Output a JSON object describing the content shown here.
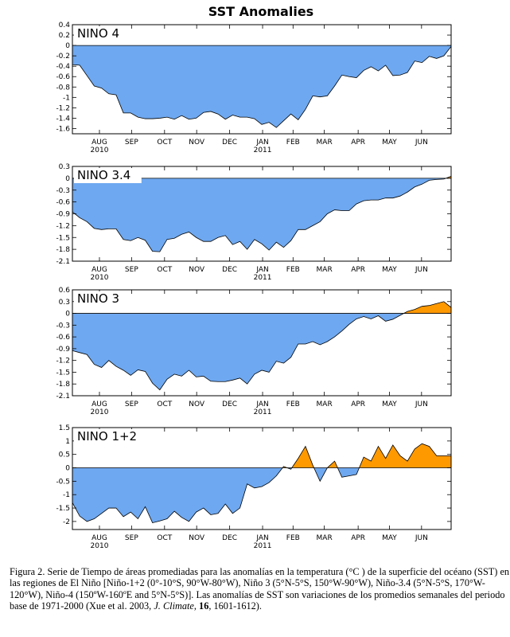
{
  "title": "SST Anomalies",
  "colors": {
    "negative": "#6ea8f0",
    "positive": "#ff9900",
    "line": "#000000"
  },
  "chart_data": [
    {
      "type": "area",
      "title": "NINO 4",
      "x": [
        0,
        1,
        2,
        3,
        4,
        5,
        6,
        7,
        8,
        9,
        10,
        11,
        12,
        13,
        14,
        15,
        16,
        17,
        18,
        19,
        20,
        21,
        22,
        23,
        24,
        25,
        26,
        27,
        28,
        29,
        30,
        31,
        32,
        33,
        34,
        35,
        36,
        37,
        38,
        39,
        40,
        41,
        42,
        43,
        44,
        45,
        46,
        47,
        48,
        49,
        50,
        51,
        52
      ],
      "y": [
        -0.37,
        -0.38,
        -0.58,
        -0.78,
        -0.82,
        -0.93,
        -0.95,
        -1.3,
        -1.3,
        -1.38,
        -1.41,
        -1.41,
        -1.4,
        -1.38,
        -1.42,
        -1.35,
        -1.42,
        -1.4,
        -1.29,
        -1.27,
        -1.32,
        -1.42,
        -1.34,
        -1.38,
        -1.38,
        -1.41,
        -1.52,
        -1.48,
        -1.58,
        -1.45,
        -1.32,
        -1.43,
        -1.23,
        -0.97,
        -0.99,
        -0.97,
        -0.78,
        -0.57,
        -0.6,
        -0.62,
        -0.48,
        -0.41,
        -0.49,
        -0.38,
        -0.58,
        -0.57,
        -0.52,
        -0.3,
        -0.33,
        -0.21,
        -0.25,
        -0.2,
        -0.02
      ],
      "ylim": [
        -1.7,
        0.4
      ],
      "yticks": [
        0.4,
        0.2,
        0,
        -0.2,
        -0.4,
        -0.6,
        -0.8,
        -1,
        -1.2,
        -1.4,
        -1.6
      ],
      "ytick_labels": [
        "0.4",
        "0.2",
        "0",
        "-0.2",
        "-0.4",
        "-0.6",
        "-0.8",
        "-1",
        "-1.2",
        "-1.4",
        "-1.6"
      ],
      "months": [
        "AUG",
        "SEP",
        "OCT",
        "NOV",
        "DEC",
        "JAN",
        "FEB",
        "MAR",
        "APR",
        "MAY",
        "JUN"
      ],
      "years": [
        {
          "label": "2010",
          "month_index": 0
        },
        {
          "label": "2011",
          "month_index": 5
        }
      ]
    },
    {
      "type": "area",
      "title": "NINO 3.4",
      "x": [
        0,
        1,
        2,
        3,
        4,
        5,
        6,
        7,
        8,
        9,
        10,
        11,
        12,
        13,
        14,
        15,
        16,
        17,
        18,
        19,
        20,
        21,
        22,
        23,
        24,
        25,
        26,
        27,
        28,
        29,
        30,
        31,
        32,
        33,
        34,
        35,
        36,
        37,
        38,
        39,
        40,
        41,
        42,
        43,
        44,
        45,
        46,
        47,
        48,
        49,
        50,
        51,
        52
      ],
      "y": [
        -0.85,
        -1.0,
        -1.1,
        -1.27,
        -1.3,
        -1.28,
        -1.28,
        -1.55,
        -1.58,
        -1.5,
        -1.57,
        -1.85,
        -1.86,
        -1.55,
        -1.52,
        -1.42,
        -1.36,
        -1.5,
        -1.6,
        -1.6,
        -1.5,
        -1.45,
        -1.68,
        -1.6,
        -1.8,
        -1.55,
        -1.66,
        -1.82,
        -1.62,
        -1.75,
        -1.58,
        -1.3,
        -1.3,
        -1.2,
        -1.1,
        -0.9,
        -0.8,
        -0.82,
        -0.82,
        -0.65,
        -0.57,
        -0.55,
        -0.55,
        -0.5,
        -0.5,
        -0.45,
        -0.35,
        -0.22,
        -0.15,
        -0.05,
        -0.03,
        -0.02,
        0.05
      ],
      "ylim": [
        -2.1,
        0.3
      ],
      "yticks": [
        0.3,
        0,
        -0.3,
        -0.6,
        -0.9,
        -1.2,
        -1.5,
        -1.8,
        -2.1
      ],
      "ytick_labels": [
        "0.3",
        "0",
        "-0.3",
        "-0.6",
        "-0.9",
        "-1.2",
        "-1.5",
        "-1.8",
        "-2.1"
      ],
      "months": [
        "AUG",
        "SEP",
        "OCT",
        "NOV",
        "DEC",
        "JAN",
        "FEB",
        "MAR",
        "APR",
        "MAY",
        "JUN"
      ],
      "years": [
        {
          "label": "2010",
          "month_index": 0
        },
        {
          "label": "2011",
          "month_index": 5
        }
      ]
    },
    {
      "type": "area",
      "title": "NINO 3",
      "x": [
        0,
        1,
        2,
        3,
        4,
        5,
        6,
        7,
        8,
        9,
        10,
        11,
        12,
        13,
        14,
        15,
        16,
        17,
        18,
        19,
        20,
        21,
        22,
        23,
        24,
        25,
        26,
        27,
        28,
        29,
        30,
        31,
        32,
        33,
        34,
        35,
        36,
        37,
        38,
        39,
        40,
        41,
        42,
        43,
        44,
        45,
        46,
        47,
        48,
        49,
        50,
        51,
        52
      ],
      "y": [
        -0.95,
        -1.0,
        -1.05,
        -1.3,
        -1.38,
        -1.2,
        -1.35,
        -1.45,
        -1.58,
        -1.44,
        -1.48,
        -1.78,
        -1.95,
        -1.68,
        -1.55,
        -1.6,
        -1.45,
        -1.62,
        -1.6,
        -1.73,
        -1.74,
        -1.74,
        -1.7,
        -1.65,
        -1.8,
        -1.55,
        -1.45,
        -1.5,
        -1.22,
        -1.27,
        -1.12,
        -0.78,
        -0.78,
        -0.72,
        -0.8,
        -0.72,
        -0.6,
        -0.45,
        -0.28,
        -0.14,
        -0.08,
        -0.14,
        -0.06,
        -0.2,
        -0.15,
        -0.05,
        0.05,
        0.1,
        0.18,
        0.2,
        0.25,
        0.3,
        0.15
      ],
      "ylim": [
        -2.1,
        0.6
      ],
      "yticks": [
        0.6,
        0.3,
        0,
        -0.3,
        -0.6,
        -0.9,
        -1.2,
        -1.5,
        -1.8,
        -2.1
      ],
      "ytick_labels": [
        "0.6",
        "0.3",
        "0",
        "-0.3",
        "-0.6",
        "-0.9",
        "-1.2",
        "-1.5",
        "-1.8",
        "-2.1"
      ],
      "months": [
        "AUG",
        "SEP",
        "OCT",
        "NOV",
        "DEC",
        "JAN",
        "FEB",
        "MAR",
        "APR",
        "MAY",
        "JUN"
      ],
      "years": [
        {
          "label": "2010",
          "month_index": 0
        },
        {
          "label": "2011",
          "month_index": 5
        }
      ]
    },
    {
      "type": "area",
      "title": "NINO 1+2",
      "x": [
        0,
        1,
        2,
        3,
        4,
        5,
        6,
        7,
        8,
        9,
        10,
        11,
        12,
        13,
        14,
        15,
        16,
        17,
        18,
        19,
        20,
        21,
        22,
        23,
        24,
        25,
        26,
        27,
        28,
        29,
        30,
        31,
        32,
        33,
        34,
        35,
        36,
        37,
        38,
        39,
        40,
        41,
        42,
        43,
        44,
        45,
        46,
        47,
        48,
        49,
        50,
        51,
        52
      ],
      "y": [
        -1.3,
        -1.8,
        -2.0,
        -1.9,
        -1.7,
        -1.5,
        -1.5,
        -1.82,
        -1.65,
        -1.9,
        -1.45,
        -2.05,
        -1.98,
        -1.9,
        -1.62,
        -1.85,
        -2.0,
        -1.65,
        -1.5,
        -1.75,
        -1.7,
        -1.35,
        -1.7,
        -1.5,
        -0.6,
        -0.75,
        -0.7,
        -0.55,
        -0.3,
        0.05,
        -0.05,
        0.35,
        0.8,
        0.1,
        -0.5,
        0.0,
        0.25,
        -0.35,
        -0.3,
        -0.25,
        0.4,
        0.25,
        0.8,
        0.35,
        0.85,
        0.45,
        0.25,
        0.7,
        0.9,
        0.8,
        0.45,
        0.45,
        0.45
      ],
      "ylim": [
        -2.3,
        1.5
      ],
      "yticks": [
        1.5,
        1,
        0.5,
        0,
        -0.5,
        -1,
        -1.5,
        -2
      ],
      "ytick_labels": [
        "1.5",
        "1",
        "0.5",
        "0",
        "-0.5",
        "-1",
        "-1.5",
        "-2"
      ],
      "months": [
        "AUG",
        "SEP",
        "OCT",
        "NOV",
        "DEC",
        "JAN",
        "FEB",
        "MAR",
        "APR",
        "MAY",
        "JUN"
      ],
      "years": [
        {
          "label": "2010",
          "month_index": 0
        },
        {
          "label": "2011",
          "month_index": 5
        }
      ]
    }
  ],
  "caption": {
    "p1": "Figura 2. Serie de Tiempo de áreas promediadas para las anomalías en la temperatura (°C ) de la superficie del océano (SST) en las regiones de El Niño [Niño-1+2 (0°-10°S, 90°W-80°W), Niño 3 (5°N-5°S, 150°W-90°W), Niño-3.4 (5°N-5°S, 170°W-120°W), Niño-4 (150ºW-160ºE and 5°N-5°S)]. Las anomalías de SST son variaciones de los promedios semanales del periodo base de 1971-2000 (Xue et al. 2003, ",
    "journal": "J. Climate",
    "sep1": ", ",
    "volume": "16",
    "p2": ", 1601-1612)."
  }
}
